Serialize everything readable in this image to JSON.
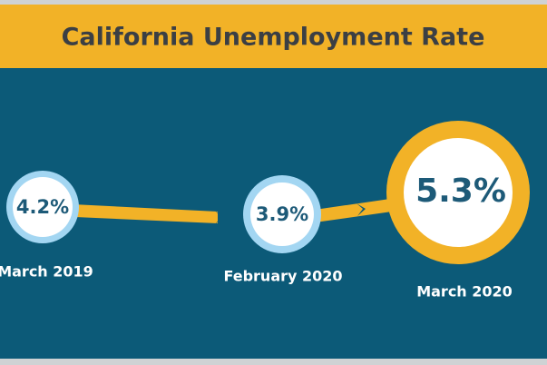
{
  "header": {
    "title": "California Unemployment Rate"
  },
  "nodes": [
    {
      "value": "4.2%",
      "date": "March 2019"
    },
    {
      "value": "3.9%",
      "date": "February 2020"
    },
    {
      "value": "5.3%",
      "date": "March 2020"
    }
  ]
}
